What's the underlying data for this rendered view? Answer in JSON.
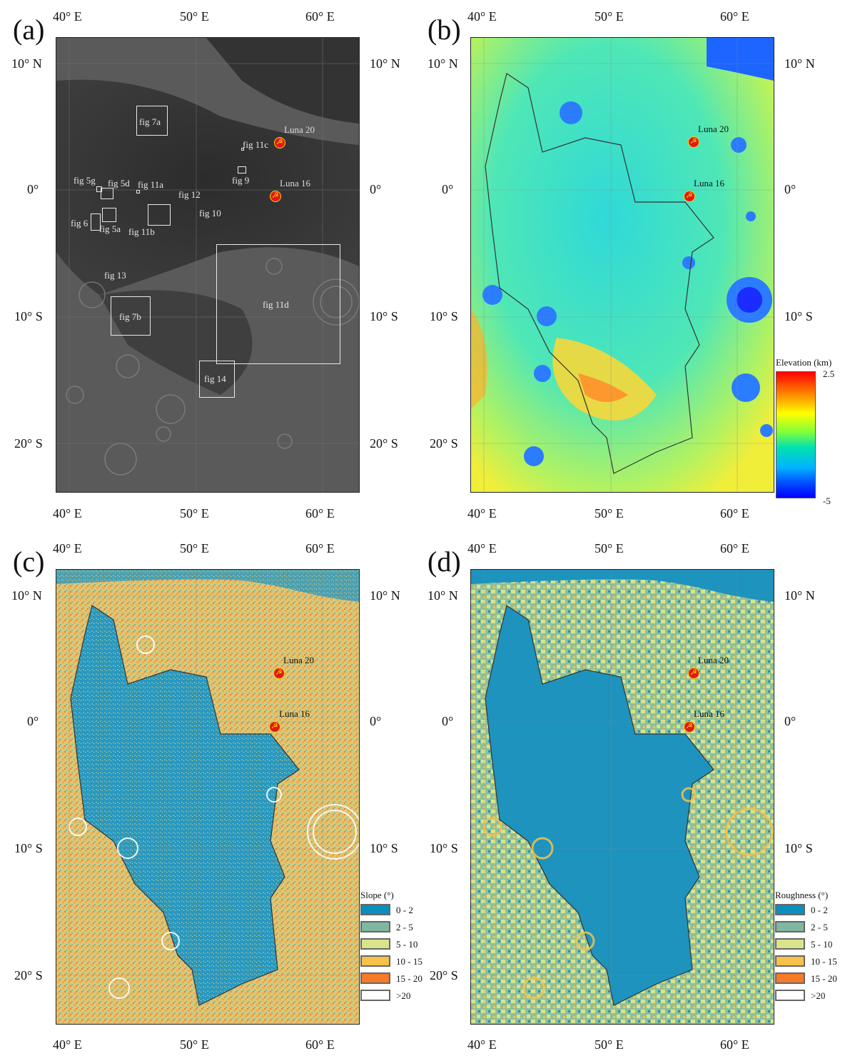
{
  "panels": [
    {
      "label": "(a)"
    },
    {
      "label": "(b)"
    },
    {
      "label": "(c)"
    },
    {
      "label": "(d)"
    }
  ],
  "axes": {
    "lon_ticks": [
      "40° E",
      "50° E",
      "60° E"
    ],
    "lat_ticks": [
      "10° N",
      "0°",
      "10° S",
      "20° S"
    ]
  },
  "sites": {
    "luna20": "Luna 20",
    "luna16": "Luna 16"
  },
  "figure_boxes": [
    {
      "label": "fig 7a"
    },
    {
      "label": "fig 11c"
    },
    {
      "label": "fig 9"
    },
    {
      "label": "fig 5g"
    },
    {
      "label": "fig 5d"
    },
    {
      "label": "fig 11a"
    },
    {
      "label": "fig 12"
    },
    {
      "label": "fig 10"
    },
    {
      "label": "fig 6"
    },
    {
      "label": "fig 5a"
    },
    {
      "label": "fig 11b"
    },
    {
      "label": "fig 13"
    },
    {
      "label": "fig 7b"
    },
    {
      "label": "fig 11d"
    },
    {
      "label": "fig 14"
    }
  ],
  "elevation_legend": {
    "title": "Elevation (km)",
    "max": "2.5",
    "min": "-5"
  },
  "slope_legend": {
    "title": "Slope (°)",
    "classes": [
      {
        "label": "0 - 2",
        "color": "#0a8fbf"
      },
      {
        "label": "2 - 5",
        "color": "#7fb7a0"
      },
      {
        "label": "5 - 10",
        "color": "#d9e48a"
      },
      {
        "label": "10 - 15",
        "color": "#f7c24a"
      },
      {
        "label": "15 - 20",
        "color": "#f57a2a"
      },
      {
        "label": ">20",
        "color": "#ffffff"
      }
    ]
  },
  "roughness_legend": {
    "title": "Roughness (°)",
    "classes": [
      {
        "label": "0 - 2",
        "color": "#0a8fbf"
      },
      {
        "label": "2 - 5",
        "color": "#7fb7a0"
      },
      {
        "label": "5 - 10",
        "color": "#d9e48a"
      },
      {
        "label": "10 - 15",
        "color": "#f7c24a"
      },
      {
        "label": "15 - 20",
        "color": "#f57a2a"
      },
      {
        "label": ">20",
        "color": "#ffffff"
      }
    ]
  }
}
